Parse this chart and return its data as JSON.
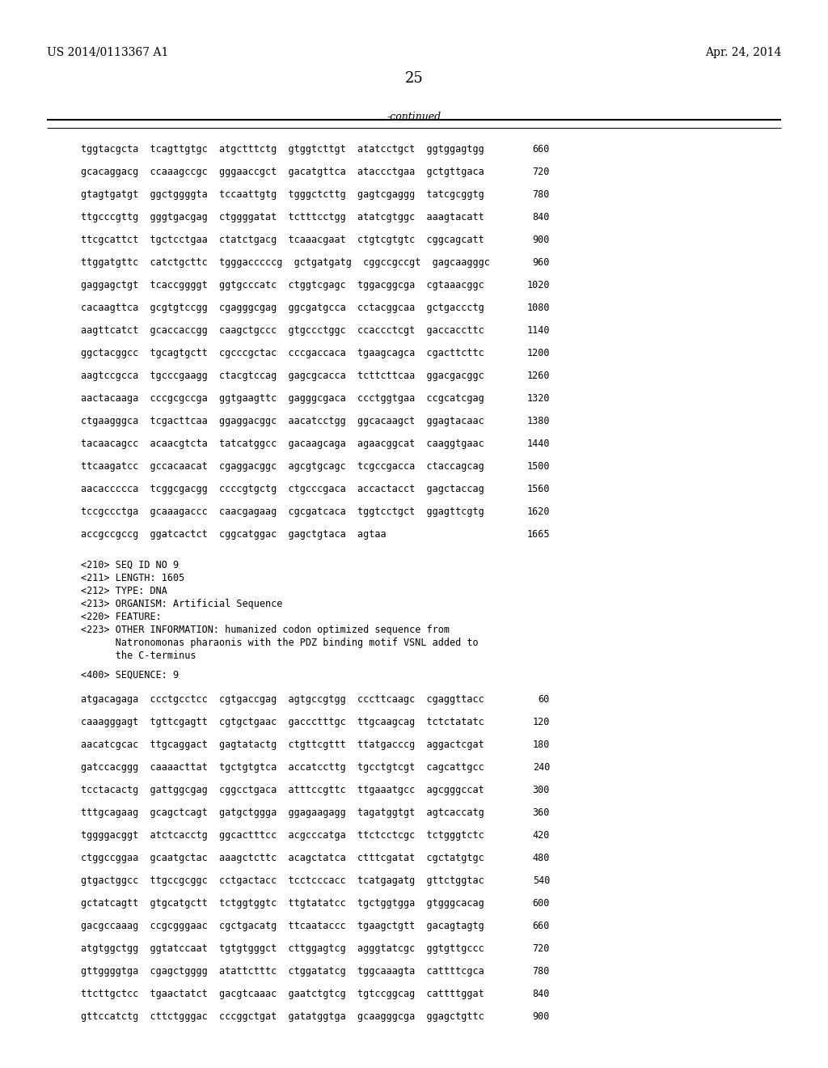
{
  "header_left": "US 2014/0113367 A1",
  "header_right": "Apr. 24, 2014",
  "page_number": "25",
  "continued_label": "-continued",
  "background_color": "#ffffff",
  "text_color": "#000000",
  "sequence_lines_top": [
    {
      "text": "tggtacgcta  tcagttgtgc  atgctttctg  gtggtcttgt  atatcctgct  ggtggagtgg",
      "num": "660"
    },
    {
      "text": "gcacaggacg  ccaaagccgc  gggaaccgct  gacatgttca  ataccctgaa  gctgttgaca",
      "num": "720"
    },
    {
      "text": "gtagtgatgt  ggctggggta  tccaattgtg  tgggctcttg  gagtcgaggg  tatcgcggtg",
      "num": "780"
    },
    {
      "text": "ttgcccgttg  gggtgacgag  ctggggatat  tctttcctgg  atatcgtggc  aaagtacatt",
      "num": "840"
    },
    {
      "text": "ttcgcattct  tgctcctgaa  ctatctgacg  tcaaacgaat  ctgtcgtgtc  cggcagcatt",
      "num": "900"
    },
    {
      "text": "ttggatgttc  catctgcttc  tgggacccccg  gctgatgatg  cggccgccgt  gagcaagggc",
      "num": "960"
    },
    {
      "text": "gaggagctgt  tcaccggggt  ggtgcccatc  ctggtcgagc  tggacggcga  cgtaaacggc",
      "num": "1020"
    },
    {
      "text": "cacaagttca  gcgtgtccgg  cgagggcgag  ggcgatgcca  cctacggcaa  gctgaccctg",
      "num": "1080"
    },
    {
      "text": "aagttcatct  gcaccaccgg  caagctgccc  gtgccctggc  ccaccctcgt  gaccaccttc",
      "num": "1140"
    },
    {
      "text": "ggctacggcc  tgcagtgctt  cgcccgctac  cccgaccaca  tgaagcagca  cgacttcttc",
      "num": "1200"
    },
    {
      "text": "aagtccgcca  tgcccgaagg  ctacgtccag  gagcgcacca  tcttcttcaa  ggacgacggc",
      "num": "1260"
    },
    {
      "text": "aactacaaga  cccgcgccga  ggtgaagttc  gagggcgaca  ccctggtgaa  ccgcatcgag",
      "num": "1320"
    },
    {
      "text": "ctgaagggca  tcgacttcaa  ggaggacggc  aacatcctgg  ggcacaagct  ggagtacaac",
      "num": "1380"
    },
    {
      "text": "tacaacagcc  acaacgtcta  tatcatggcc  gacaagcaga  agaacggcat  caaggtgaac",
      "num": "1440"
    },
    {
      "text": "ttcaagatcc  gccacaacat  cgaggacggc  agcgtgcagc  tcgccgacca  ctaccagcag",
      "num": "1500"
    },
    {
      "text": "aacaccccca  tcggcgacgg  ccccgtgctg  ctgcccgaca  accactacct  gagctaccag",
      "num": "1560"
    },
    {
      "text": "tccgccctga  gcaaagaccc  caacgagaag  cgcgatcaca  tggtcctgct  ggagttcgtg",
      "num": "1620"
    },
    {
      "text": "accgccgccg  ggatcactct  cggcatggac  gagctgtaca  agtaa",
      "num": "1665"
    }
  ],
  "metadata_lines": [
    "<210> SEQ ID NO 9",
    "<211> LENGTH: 1605",
    "<212> TYPE: DNA",
    "<213> ORGANISM: Artificial Sequence",
    "<220> FEATURE:",
    "<223> OTHER INFORMATION: humanized codon optimized sequence from",
    "      Natronomonas pharaonis with the PDZ binding motif VSNL added to",
    "      the C-terminus"
  ],
  "sequence_label": "<400> SEQUENCE: 9",
  "sequence_lines_bottom": [
    {
      "text": "atgacagaga  ccctgcctcc  cgtgaccgag  agtgccgtgg  cccttcaagc  cgaggttacc",
      "num": "60"
    },
    {
      "text": "caaagggagt  tgttcgagtt  cgtgctgaac  gaccctttgc  ttgcaagcag  tctctatatc",
      "num": "120"
    },
    {
      "text": "aacatcgcac  ttgcaggact  gagtatactg  ctgttcgttt  ttatgacccg  aggactcgat",
      "num": "180"
    },
    {
      "text": "gatccacggg  caaaacttat  tgctgtgtca  accatccttg  tgcctgtcgt  cagcattgcc",
      "num": "240"
    },
    {
      "text": "tcctacactg  gattggcgag  cggcctgaca  atttccgttc  ttgaaatgcc  agcgggccat",
      "num": "300"
    },
    {
      "text": "tttgcagaag  gcagctcagt  gatgctggga  ggagaagagg  tagatggtgt  agtcaccatg",
      "num": "360"
    },
    {
      "text": "tggggacggt  atctcacctg  ggcactttcc  acgcccatga  ttctcctcgc  tctgggtctc",
      "num": "420"
    },
    {
      "text": "ctggccggaa  gcaatgctac  aaagctcttc  acagctatca  ctttcgatat  cgctatgtgc",
      "num": "480"
    },
    {
      "text": "gtgactggcc  ttgccgcggc  cctgactacc  tcctcccacc  tcatgagatg  gttctggtac",
      "num": "540"
    },
    {
      "text": "gctatcagtt  gtgcatgctt  tctggtggtc  ttgtatatcc  tgctggtgga  gtgggcacag",
      "num": "600"
    },
    {
      "text": "gacgccaaag  ccgcgggaac  cgctgacatg  ttcaataccc  tgaagctgtt  gacagtagtg",
      "num": "660"
    },
    {
      "text": "atgtggctgg  ggtatccaat  tgtgtgggct  cttggagtcg  agggtatcgc  ggtgttgccc",
      "num": "720"
    },
    {
      "text": "gttggggtga  cgagctgggg  atattctttc  ctggatatcg  tggcaaagta  cattttcgca",
      "num": "780"
    },
    {
      "text": "ttcttgctcc  tgaactatct  gacgtcaaac  gaatctgtcg  tgtccggcag  cattttggat",
      "num": "840"
    },
    {
      "text": "gttccatctg  cttctgggac  cccggctgat  gatatggtga  gcaagggcga  ggagctgttc",
      "num": "900"
    }
  ]
}
